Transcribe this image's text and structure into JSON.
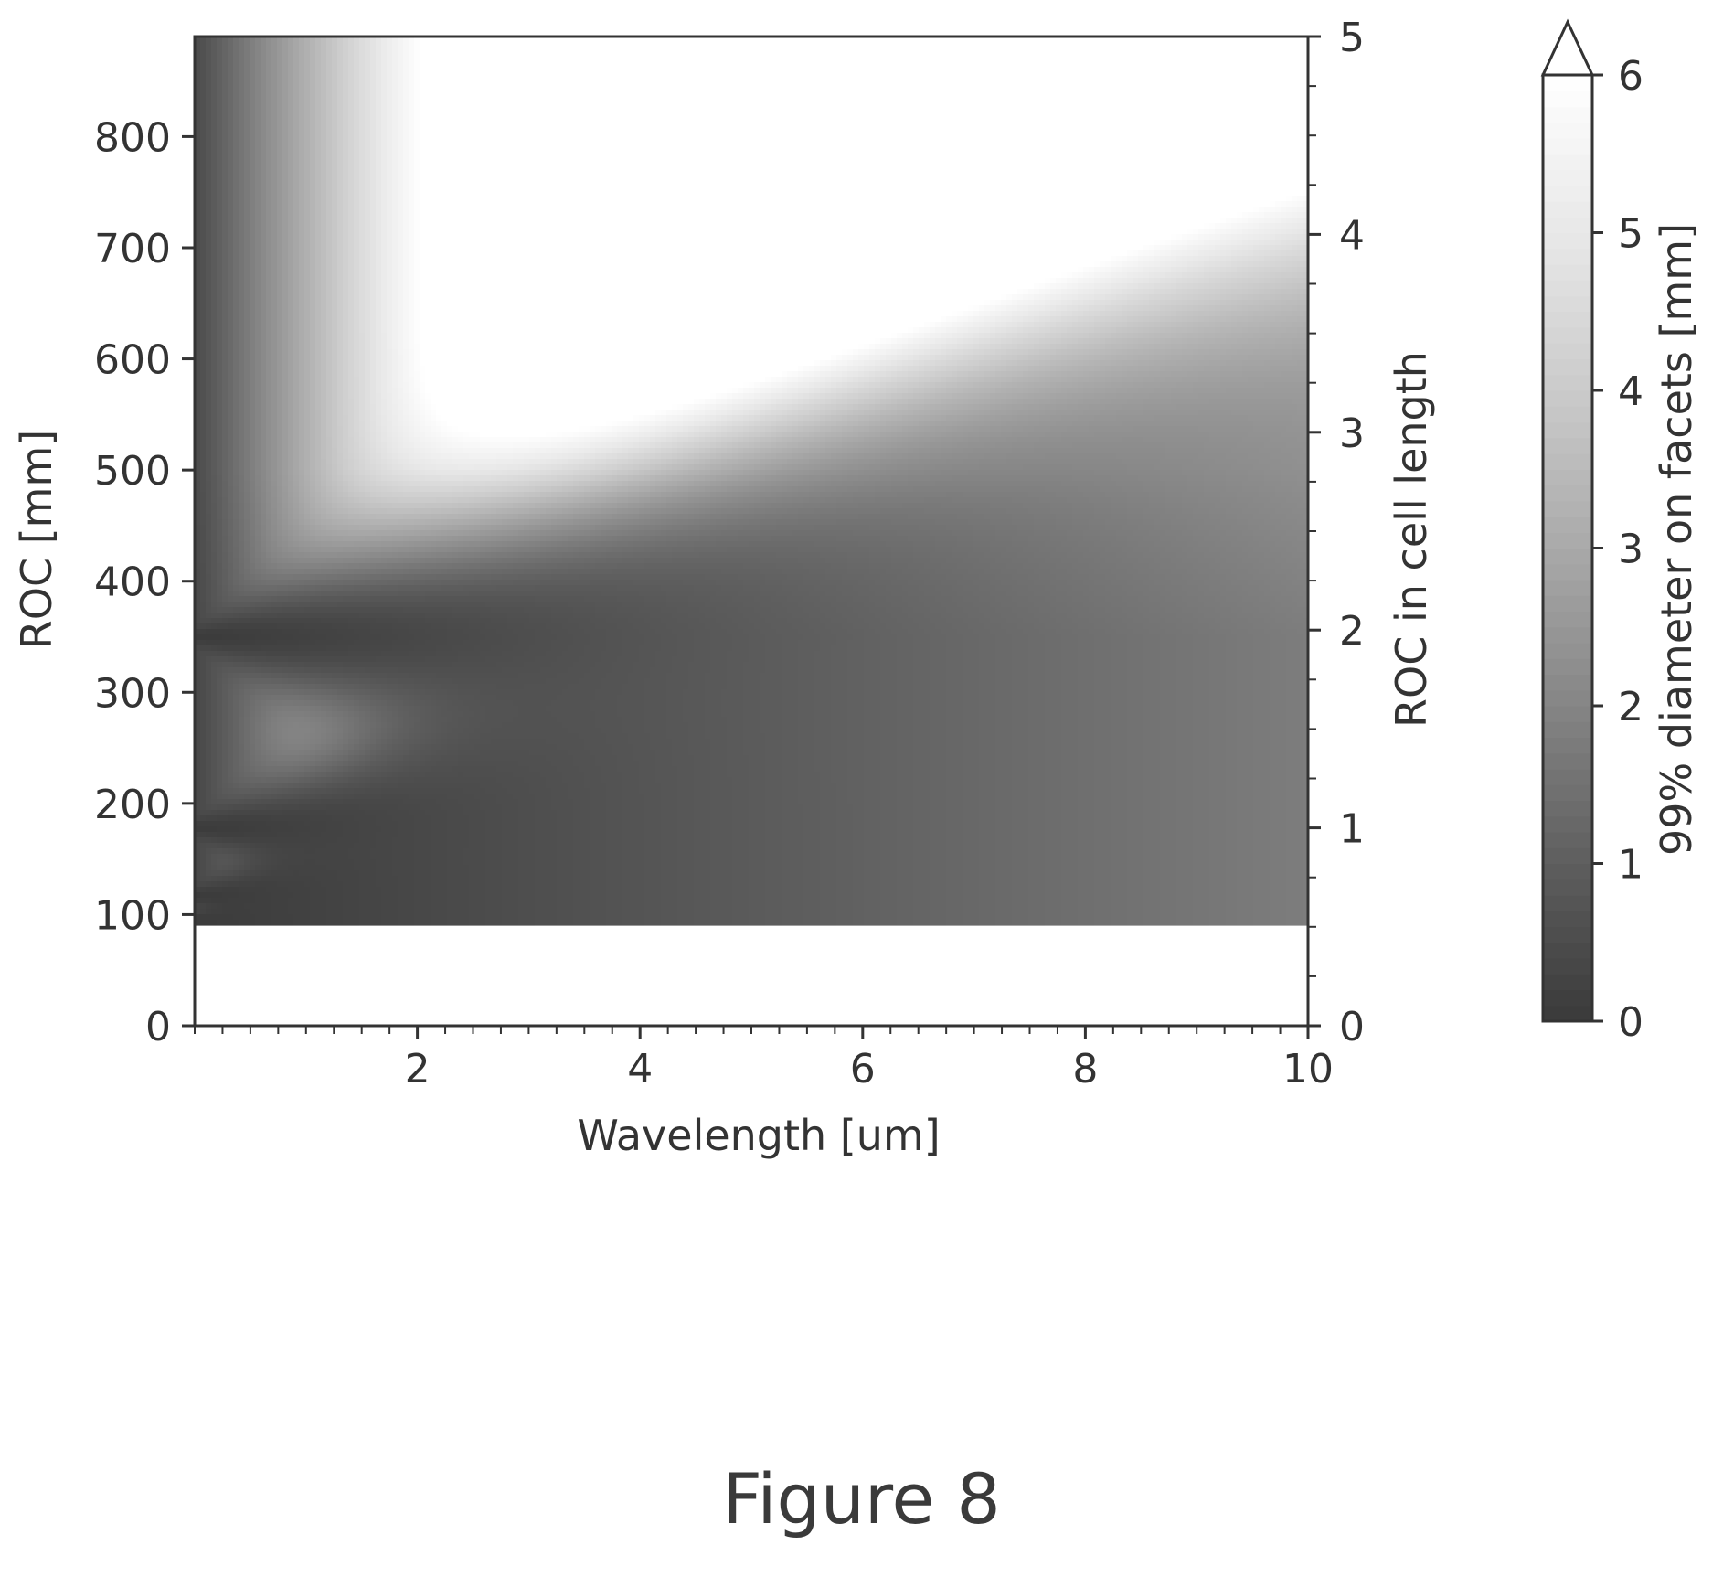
{
  "figure_caption": "Figure 8",
  "chart_data": {
    "type": "heatmap",
    "xlabel": "Wavelength [um]",
    "ylabel": "ROC [mm]",
    "y2label": "ROC in cell length",
    "colorbar_label": "99% diameter on facets [mm]",
    "xlim": [
      0,
      10
    ],
    "ylim": [
      0,
      890
    ],
    "y2lim": [
      0,
      5
    ],
    "x_ticks": [
      "2",
      "4",
      "6",
      "8",
      "10"
    ],
    "y_ticks": [
      "0",
      "100",
      "200",
      "300",
      "400",
      "500",
      "600",
      "700",
      "800"
    ],
    "y2_ticks": [
      "0",
      "1",
      "2",
      "3",
      "4",
      "5"
    ],
    "colorbar_ticks": [
      "0",
      "1",
      "2",
      "3",
      "4",
      "5",
      "6"
    ],
    "colorbar_range": [
      0,
      6
    ],
    "colorbar_extend": "max",
    "colormap": [
      "#3a3a3a",
      "#5e5e5e",
      "#858585",
      "#a9a9a9",
      "#cbcbcb",
      "#e8e8e8",
      "#ffffff"
    ],
    "grid": false,
    "resonance_bands": [
      {
        "roc_mm": 95,
        "diameter_mm": 0
      },
      {
        "roc_mm": 117,
        "diameter_mm": 0
      },
      {
        "roc_mm": 178,
        "diameter_mm": 0
      },
      {
        "roc_mm": 350,
        "diameter_mm": 0
      }
    ],
    "blank_below_roc_mm": 92,
    "axis_color": "#333333"
  }
}
